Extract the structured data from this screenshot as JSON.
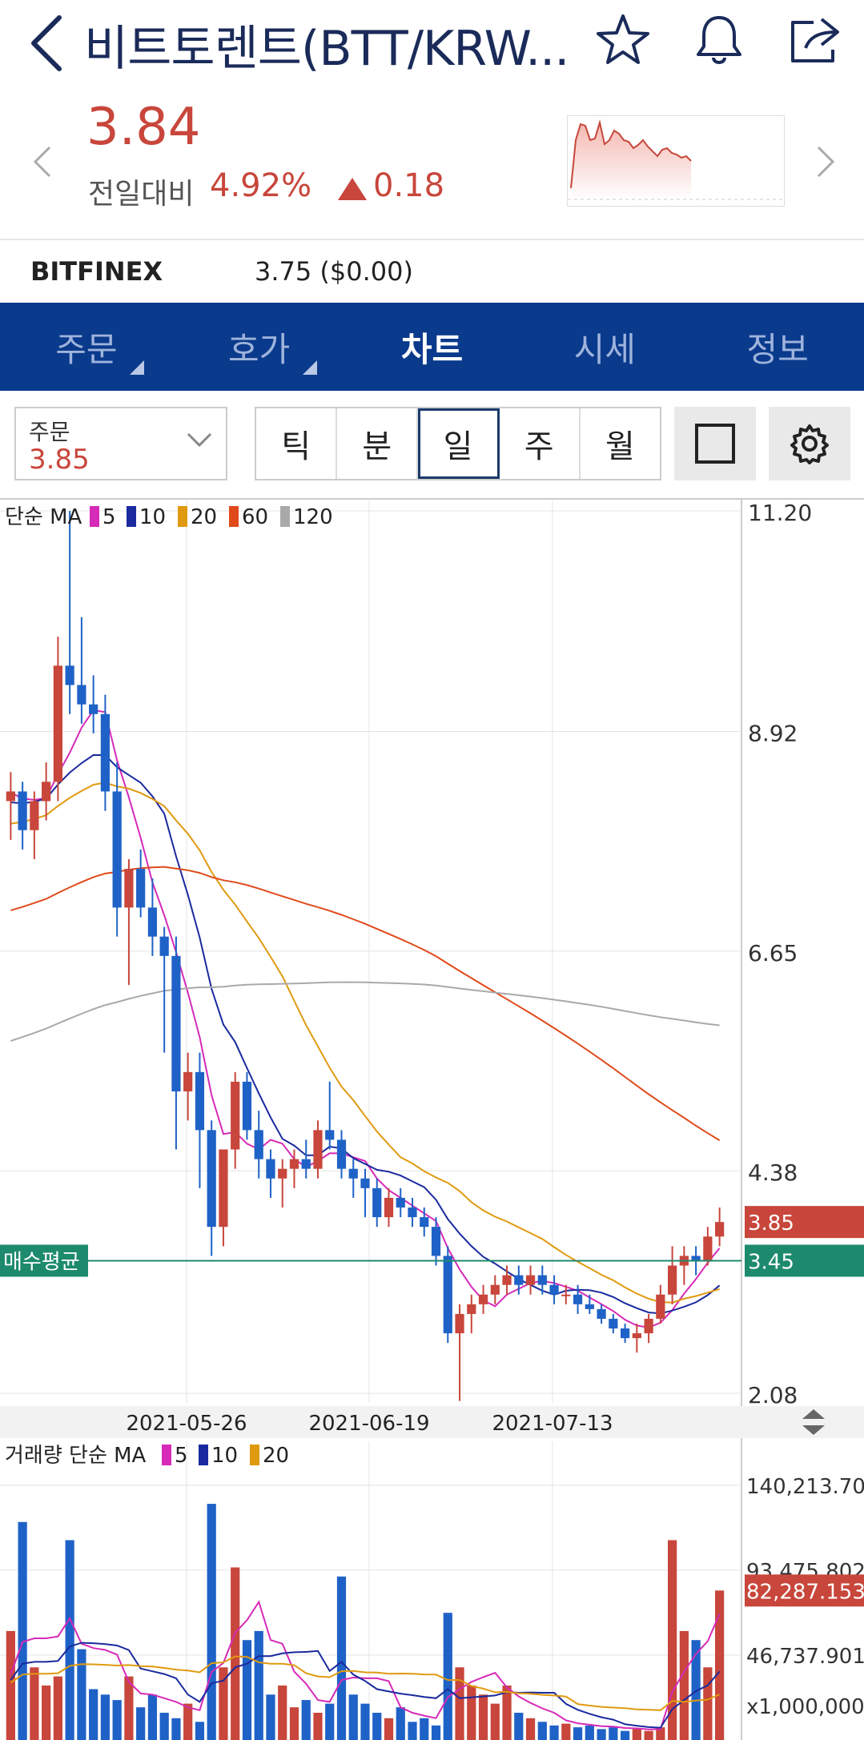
{
  "header": {
    "back_icon": "chevron-left-icon",
    "title": "비트토렌트(BTT/KRW...",
    "icons": [
      "star-icon",
      "bell-icon",
      "share-icon"
    ]
  },
  "quote": {
    "price": "3.84",
    "change_label": "전일대비",
    "change_pct": "4.92%",
    "change_value": "0.18",
    "up_color": "#c8463b",
    "down_color": "#1f62c7"
  },
  "exchange": {
    "name": "BITFINEX",
    "value": "3.75 ($0.00)"
  },
  "tabs": [
    {
      "label": "주문",
      "has_menu": true,
      "active": false
    },
    {
      "label": "호가",
      "has_menu": true,
      "active": false
    },
    {
      "label": "차트",
      "has_menu": false,
      "active": true
    },
    {
      "label": "시세",
      "has_menu": false,
      "active": false
    },
    {
      "label": "정보",
      "has_menu": false,
      "active": false
    }
  ],
  "toolbar": {
    "order_label": "주문",
    "order_value": "3.85",
    "periods": [
      {
        "label": "틱",
        "active": false
      },
      {
        "label": "분",
        "active": false
      },
      {
        "label": "일",
        "active": true
      },
      {
        "label": "주",
        "active": false
      },
      {
        "label": "월",
        "active": false
      }
    ]
  },
  "chart_data": [
    {
      "type": "candlestick",
      "legend_prefix": "단순 MA",
      "ma_series": [
        {
          "name": "5",
          "color": "#d62ab8"
        },
        {
          "name": "10",
          "color": "#1a2a9e"
        },
        {
          "name": "20",
          "color": "#e09a10"
        },
        {
          "name": "60",
          "color": "#e04a1a"
        },
        {
          "name": "120",
          "color": "#a9a9a9"
        }
      ],
      "y_ticks": [
        "11.20",
        "8.92",
        "6.65",
        "4.38",
        "2.08"
      ],
      "ylim": [
        2.08,
        11.2
      ],
      "x_ticks": [
        "2021-05-26",
        "2021-06-19",
        "2021-07-13"
      ],
      "current_price_label": "3.85",
      "avg_buy_label": "매수평균",
      "avg_buy_value": "3.45",
      "candles": [
        [
          8.2,
          8.5,
          7.8,
          8.3
        ],
        [
          8.3,
          8.4,
          7.7,
          7.9
        ],
        [
          7.9,
          8.3,
          7.6,
          8.2
        ],
        [
          8.2,
          8.6,
          8.0,
          8.4
        ],
        [
          8.4,
          9.9,
          8.2,
          9.6
        ],
        [
          9.6,
          11.2,
          9.1,
          9.4
        ],
        [
          9.4,
          10.1,
          9.0,
          9.2
        ],
        [
          9.2,
          9.5,
          8.9,
          9.1
        ],
        [
          9.1,
          9.3,
          8.1,
          8.3
        ],
        [
          8.3,
          8.6,
          6.8,
          7.1
        ],
        [
          7.1,
          7.6,
          6.3,
          7.5
        ],
        [
          7.5,
          7.7,
          7.0,
          7.1
        ],
        [
          7.1,
          7.4,
          6.6,
          6.8
        ],
        [
          6.8,
          6.9,
          5.6,
          6.6
        ],
        [
          6.6,
          6.8,
          4.6,
          5.2
        ],
        [
          5.2,
          5.6,
          4.9,
          5.4
        ],
        [
          5.4,
          5.6,
          4.2,
          4.8
        ],
        [
          4.8,
          4.9,
          3.5,
          3.8
        ],
        [
          3.8,
          4.6,
          3.6,
          4.6
        ],
        [
          4.6,
          5.4,
          4.4,
          5.3
        ],
        [
          5.3,
          5.4,
          4.7,
          4.8
        ],
        [
          4.8,
          5.0,
          4.3,
          4.5
        ],
        [
          4.5,
          4.6,
          4.1,
          4.3
        ],
        [
          4.3,
          4.5,
          4.0,
          4.4
        ],
        [
          4.4,
          4.6,
          4.2,
          4.5
        ],
        [
          4.5,
          4.7,
          4.3,
          4.4
        ],
        [
          4.4,
          4.9,
          4.3,
          4.8
        ],
        [
          4.8,
          5.3,
          4.6,
          4.7
        ],
        [
          4.7,
          4.8,
          4.3,
          4.4
        ],
        [
          4.4,
          4.5,
          4.1,
          4.3
        ],
        [
          4.3,
          4.4,
          3.9,
          4.2
        ],
        [
          4.2,
          4.3,
          3.8,
          3.9
        ],
        [
          3.9,
          4.2,
          3.8,
          4.1
        ],
        [
          4.1,
          4.2,
          3.9,
          4.0
        ],
        [
          4.0,
          4.1,
          3.8,
          3.9
        ],
        [
          3.9,
          4.0,
          3.7,
          3.8
        ],
        [
          3.8,
          3.9,
          3.4,
          3.5
        ],
        [
          3.5,
          3.6,
          2.6,
          2.7
        ],
        [
          2.7,
          3.0,
          2.0,
          2.9
        ],
        [
          2.9,
          3.1,
          2.7,
          3.0
        ],
        [
          3.0,
          3.2,
          2.9,
          3.1
        ],
        [
          3.1,
          3.3,
          3.0,
          3.2
        ],
        [
          3.2,
          3.4,
          3.1,
          3.3
        ],
        [
          3.3,
          3.4,
          3.1,
          3.2
        ],
        [
          3.2,
          3.4,
          3.1,
          3.3
        ],
        [
          3.3,
          3.4,
          3.1,
          3.2
        ],
        [
          3.2,
          3.3,
          3.0,
          3.1
        ],
        [
          3.1,
          3.2,
          3.0,
          3.1
        ],
        [
          3.1,
          3.2,
          2.9,
          3.0
        ],
        [
          3.0,
          3.1,
          2.9,
          2.95
        ],
        [
          2.95,
          3.0,
          2.8,
          2.85
        ],
        [
          2.85,
          2.9,
          2.7,
          2.75
        ],
        [
          2.75,
          2.8,
          2.6,
          2.65
        ],
        [
          2.65,
          2.8,
          2.5,
          2.7
        ],
        [
          2.7,
          2.9,
          2.6,
          2.85
        ],
        [
          2.85,
          3.2,
          2.8,
          3.1
        ],
        [
          3.1,
          3.6,
          3.0,
          3.4
        ],
        [
          3.4,
          3.6,
          3.2,
          3.5
        ],
        [
          3.5,
          3.6,
          3.3,
          3.45
        ],
        [
          3.45,
          3.8,
          3.4,
          3.7
        ],
        [
          3.7,
          4.0,
          3.6,
          3.85
        ]
      ]
    },
    {
      "type": "bar",
      "legend_prefix": "거래량 단순 MA",
      "ma_series": [
        {
          "name": "5",
          "color": "#d62ab8"
        },
        {
          "name": "10",
          "color": "#1a2a9e"
        },
        {
          "name": "20",
          "color": "#e09a10"
        }
      ],
      "y_ticks": [
        "140,213.703",
        "93,475.802",
        "46,737.901"
      ],
      "current_label": "82,287.153",
      "unit_label": "x1,000,000",
      "ylim": [
        0,
        160000
      ],
      "values": [
        60000,
        120000,
        40000,
        30000,
        35000,
        110000,
        50000,
        28000,
        25000,
        22000,
        35000,
        18000,
        25000,
        15000,
        12000,
        20000,
        10000,
        130000,
        40000,
        95000,
        55000,
        60000,
        25000,
        30000,
        18000,
        22000,
        15000,
        20000,
        90000,
        25000,
        20000,
        15000,
        12000,
        18000,
        10000,
        12000,
        8000,
        70000,
        40000,
        30000,
        25000,
        20000,
        30000,
        15000,
        12000,
        10000,
        8000,
        9000,
        7000,
        8000,
        6000,
        7000,
        5000,
        6000,
        5000,
        7000,
        110000,
        60000,
        55000,
        40000,
        82287
      ]
    }
  ]
}
